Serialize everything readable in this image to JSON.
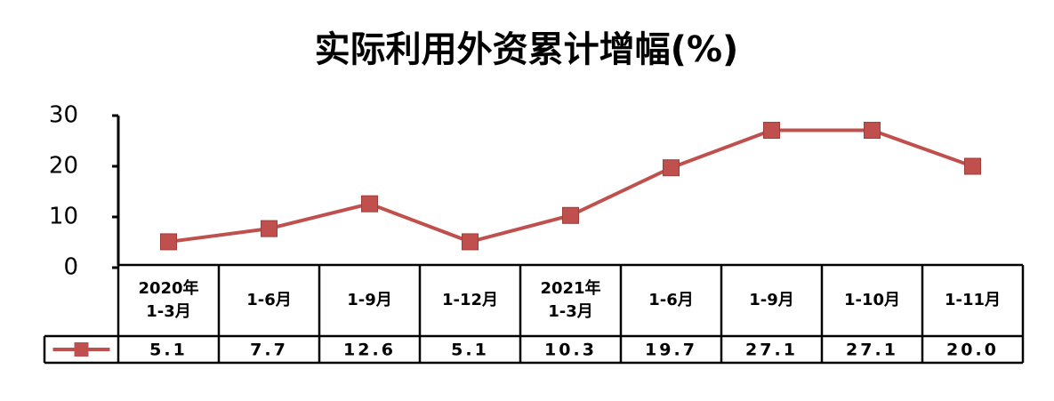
{
  "chart_data": {
    "type": "line",
    "title": "实际利用外资累计增幅(%)",
    "categories": [
      "2020年\n1-3月",
      "1-6月",
      "1-9月",
      "1-12月",
      "2021年\n1-3月",
      "1-6月",
      "1-9月",
      "1-10月",
      "1-11月"
    ],
    "values": [
      5.1,
      7.7,
      12.6,
      5.1,
      10.3,
      19.7,
      27.1,
      27.1,
      20.0
    ],
    "value_labels": [
      "5.1",
      "7.7",
      "12.6",
      "5.1",
      "10.3",
      "19.7",
      "27.1",
      "27.1",
      "20.0"
    ],
    "color": "#c0504d",
    "ylim": [
      0,
      30
    ],
    "yticks": [
      0,
      10,
      20,
      30
    ]
  }
}
